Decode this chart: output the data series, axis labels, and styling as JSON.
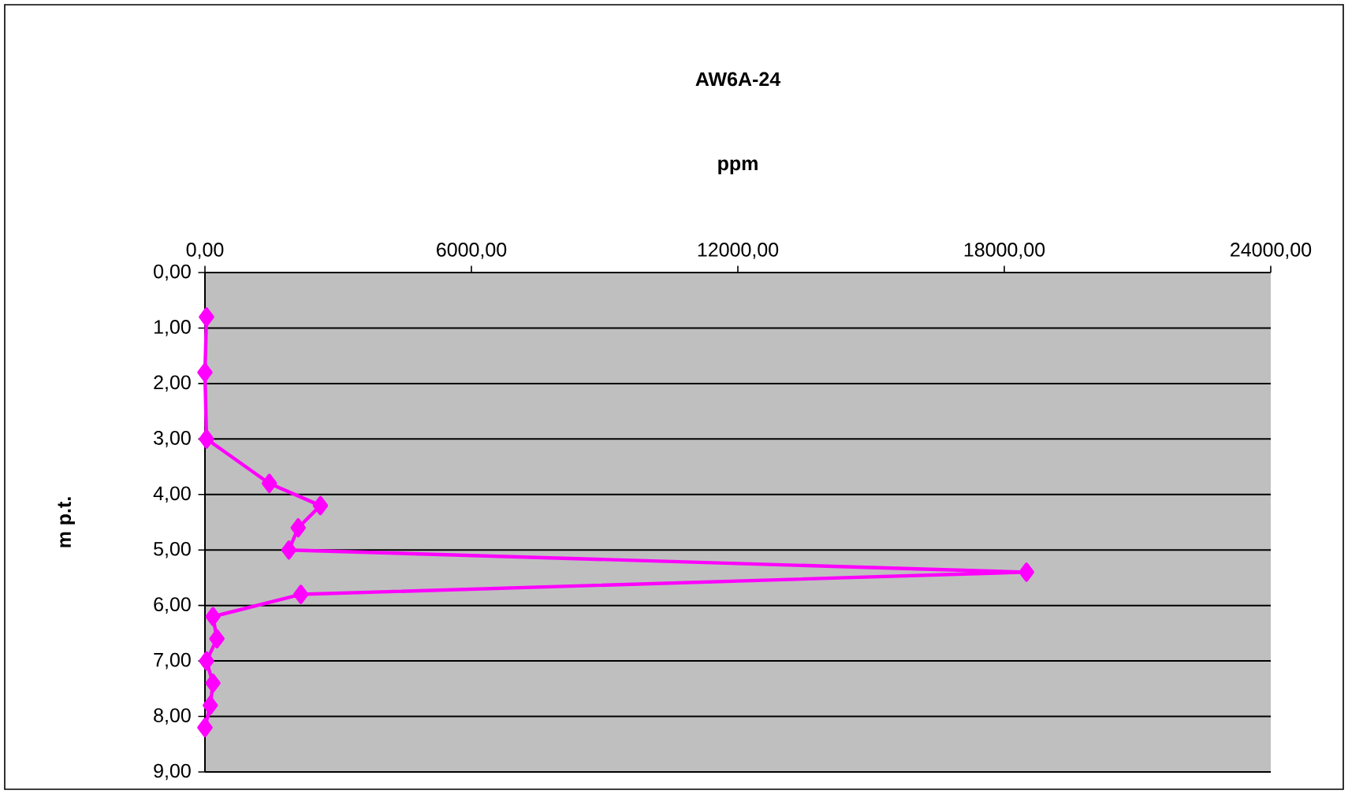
{
  "chart_data": {
    "type": "line",
    "title": "AW6A-24",
    "xlabel": "ppm",
    "ylabel": "m p.t.",
    "xlim": [
      0,
      24000
    ],
    "xticks": [
      {
        "value": 0,
        "label": "0,00"
      },
      {
        "value": 6000,
        "label": "6000,00"
      },
      {
        "value": 12000,
        "label": "12000,00"
      },
      {
        "value": 18000,
        "label": "18000,00"
      },
      {
        "value": 24000,
        "label": "24000,00"
      }
    ],
    "ylim": [
      9,
      0
    ],
    "yticks": [
      {
        "value": 0,
        "label": "0,00"
      },
      {
        "value": 1,
        "label": "1,00"
      },
      {
        "value": 2,
        "label": "2,00"
      },
      {
        "value": 3,
        "label": "3,00"
      },
      {
        "value": 4,
        "label": "4,00"
      },
      {
        "value": 5,
        "label": "5,00"
      },
      {
        "value": 6,
        "label": "6,00"
      },
      {
        "value": 7,
        "label": "7,00"
      },
      {
        "value": 8,
        "label": "8,00"
      },
      {
        "value": 9,
        "label": "9,00"
      }
    ],
    "grid": "y",
    "marker": "diamond",
    "line_style": "solid",
    "series": [
      {
        "color": "#ff00ff",
        "x": [
          35,
          0,
          35,
          1450,
          2600,
          2100,
          1890,
          18500,
          2160,
          180,
          270,
          35,
          180,
          120,
          0
        ],
        "values": [
          0.8,
          1.8,
          3.0,
          3.8,
          4.2,
          4.6,
          5.0,
          5.4,
          5.8,
          6.2,
          6.6,
          7.0,
          7.4,
          7.8,
          8.2
        ]
      }
    ]
  }
}
